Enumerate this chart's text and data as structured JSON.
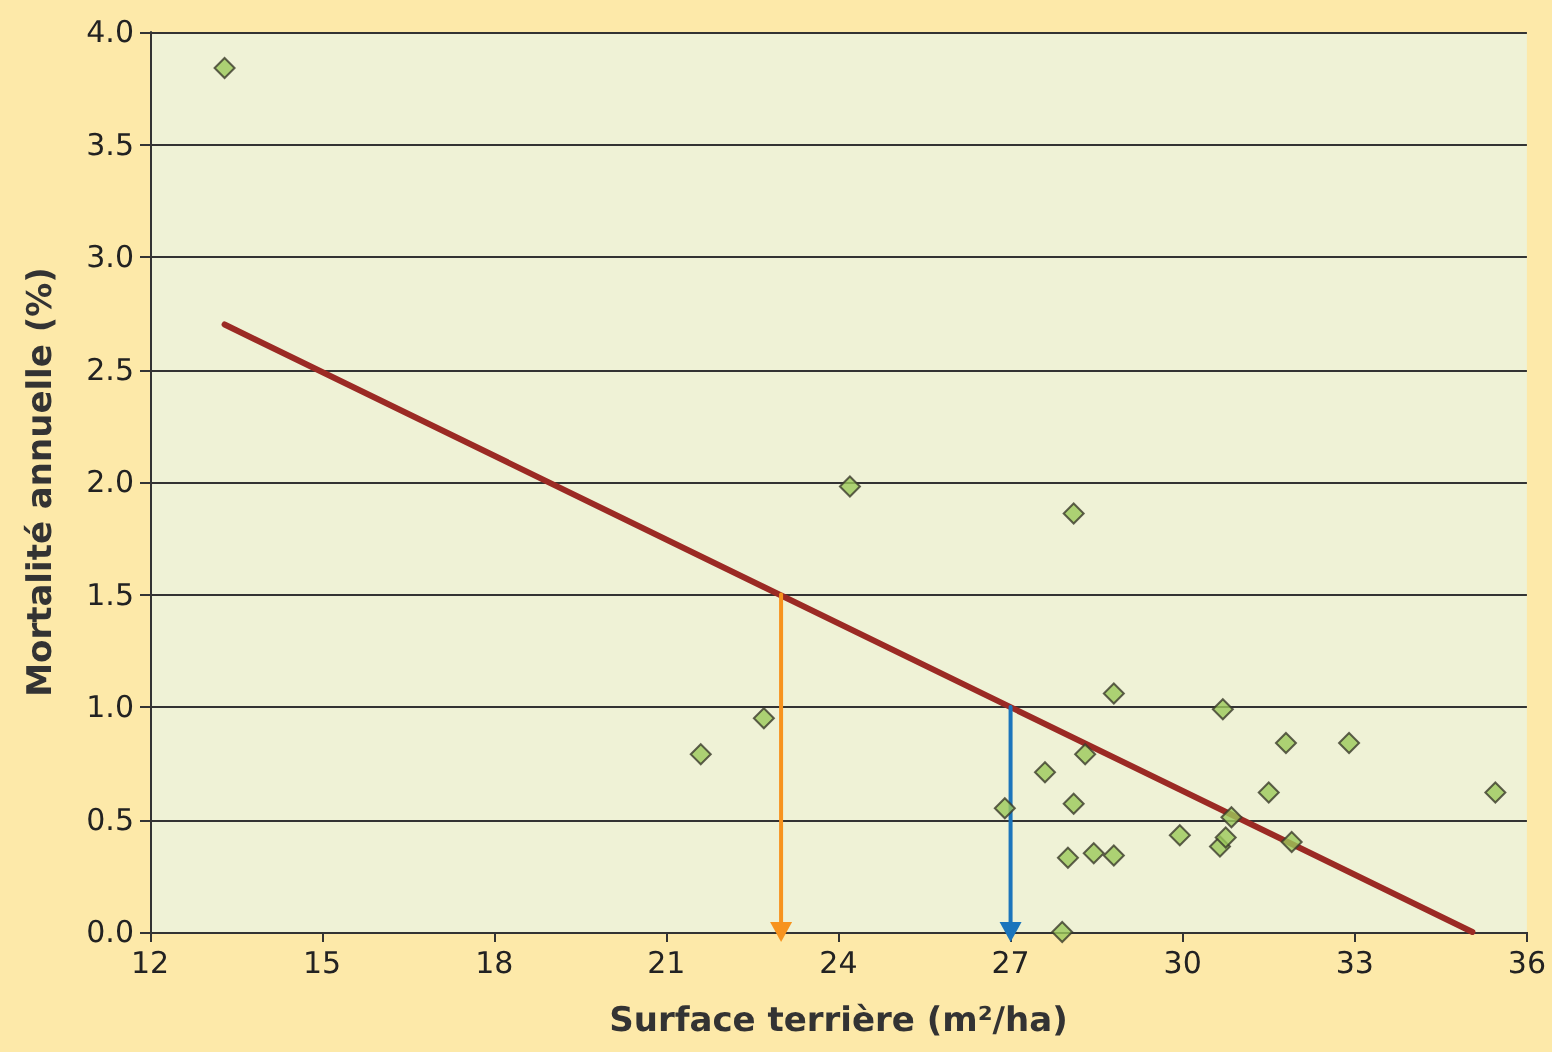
{
  "chart_data": {
    "type": "scatter",
    "xlabel": "Surface terrière (m²/ha)",
    "ylabel": "Mortalité annuelle (%)",
    "xlim": [
      12,
      36
    ],
    "xticks": [
      12,
      15,
      18,
      21,
      24,
      27,
      30,
      33,
      36
    ],
    "ylim": [
      0,
      4
    ],
    "yticks": [
      {
        "value": 0,
        "label": "0.0"
      },
      {
        "value": 0.5,
        "label": "0.5"
      },
      {
        "value": 1,
        "label": "1.0"
      },
      {
        "value": 1.5,
        "label": "1.5"
      },
      {
        "value": 2,
        "label": "2.0"
      },
      {
        "value": 2.5,
        "label": "2.5"
      },
      {
        "value": 3,
        "label": "3.0"
      },
      {
        "value": 3.5,
        "label": "3.5"
      },
      {
        "value": 4,
        "label": "4.0"
      }
    ],
    "grid": "y",
    "marker": "diamond",
    "series": [
      {
        "type": "scatter",
        "color": "#9bc85a",
        "x": [
          13.3,
          21.6,
          22.7,
          24.2,
          26.9,
          27.6,
          27.9,
          28.0,
          28.1,
          28.1,
          28.3,
          28.45,
          28.8,
          28.8,
          29.95,
          30.7,
          30.65,
          30.75,
          30.85,
          31.5,
          31.8,
          31.9,
          32.9,
          35.45
        ],
        "values": [
          3.84,
          0.79,
          0.95,
          1.98,
          0.55,
          0.71,
          0.0,
          0.33,
          1.86,
          0.57,
          0.79,
          0.35,
          0.34,
          1.06,
          0.43,
          0.99,
          0.38,
          0.42,
          0.51,
          0.62,
          0.84,
          0.4,
          0.84,
          0.62
        ]
      },
      {
        "type": "line",
        "color": "#9b2a24",
        "marker": "none",
        "x": [
          13.3,
          35.05
        ],
        "values": [
          2.7,
          0
        ]
      },
      {
        "type": "line",
        "color": "#f7931e",
        "marker": "triangle",
        "x": [
          23,
          23
        ],
        "values": [
          1.5,
          0
        ]
      },
      {
        "type": "line",
        "color": "#1b75bc",
        "marker": "triangle",
        "x": [
          27,
          27
        ],
        "values": [
          1.0,
          0
        ]
      }
    ]
  }
}
